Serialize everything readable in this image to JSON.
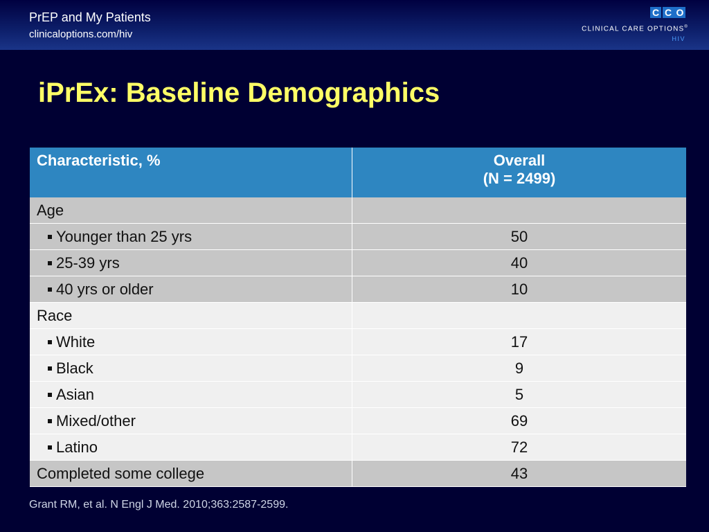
{
  "header": {
    "title": "PrEP and My Patients",
    "url": "clinicaloptions.com/hiv",
    "logo_letters": [
      "C",
      "C",
      "O"
    ],
    "logo_text": "CLINICAL CARE OPTIONS",
    "logo_mark": "®",
    "logo_sub": "HIV"
  },
  "slide": {
    "title": "iPrEx: Baseline Demographics"
  },
  "table": {
    "col1_header": "Characteristic, %",
    "col2_header_line1": "Overall",
    "col2_header_line2": "(N = 2499)",
    "rows": [
      {
        "label": "Age",
        "value": "",
        "sub": false,
        "shade": "grey"
      },
      {
        "label": "Younger than 25 yrs",
        "value": "50",
        "sub": true,
        "shade": "grey"
      },
      {
        "label": "25-39 yrs",
        "value": "40",
        "sub": true,
        "shade": "grey"
      },
      {
        "label": "40 yrs or older",
        "value": "10",
        "sub": true,
        "shade": "grey"
      },
      {
        "label": "Race",
        "value": "",
        "sub": false,
        "shade": "light"
      },
      {
        "label": "White",
        "value": "17",
        "sub": true,
        "shade": "light"
      },
      {
        "label": "Black",
        "value": "9",
        "sub": true,
        "shade": "light"
      },
      {
        "label": "Asian",
        "value": "5",
        "sub": true,
        "shade": "light"
      },
      {
        "label": "Mixed/other",
        "value": "69",
        "sub": true,
        "shade": "light"
      },
      {
        "label": "Latino",
        "value": "72",
        "sub": true,
        "shade": "light"
      },
      {
        "label": "Completed some college",
        "value": "43",
        "sub": false,
        "shade": "grey"
      }
    ]
  },
  "footnote": "Grant RM, et al. N Engl J Med. 2010;363:2587-2599."
}
